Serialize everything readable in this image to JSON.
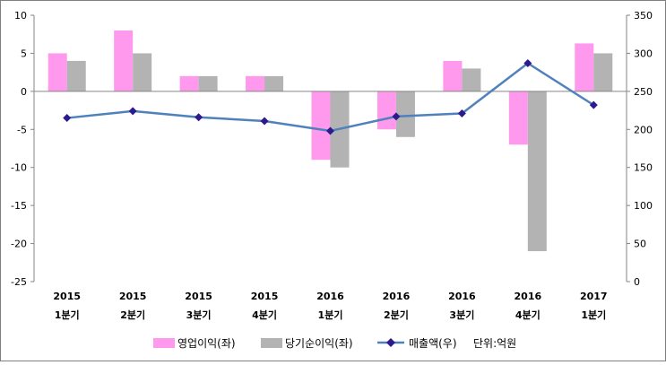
{
  "chart_data": {
    "type": "bar+line",
    "categories": [
      [
        "2015",
        "1분기"
      ],
      [
        "2015",
        "2분기"
      ],
      [
        "2015",
        "3분기"
      ],
      [
        "2015",
        "4분기"
      ],
      [
        "2016",
        "1분기"
      ],
      [
        "2016",
        "2분기"
      ],
      [
        "2016",
        "3분기"
      ],
      [
        "2016",
        "4분기"
      ],
      [
        "2017",
        "1분기"
      ]
    ],
    "left_axis": {
      "min": -25,
      "max": 10,
      "step": 5,
      "ticks": [
        "10",
        "5",
        "0",
        "-5",
        "-10",
        "-15",
        "-20",
        "-25"
      ]
    },
    "right_axis": {
      "min": 0,
      "max": 350,
      "step": 50,
      "ticks": [
        "350",
        "300",
        "250",
        "200",
        "150",
        "100",
        "50",
        "0"
      ]
    },
    "series": [
      {
        "name": "영업이익(좌)",
        "kind": "bar",
        "axis": "left",
        "color": "#ff99ee",
        "values": [
          5,
          8,
          2,
          2,
          -9,
          -5,
          4,
          -7,
          6.3
        ]
      },
      {
        "name": "당기순이익(좌)",
        "kind": "bar",
        "axis": "left",
        "color": "#b3b3b3",
        "values": [
          4,
          5,
          2,
          2,
          -10,
          -6,
          3,
          -21,
          5
        ]
      },
      {
        "name": "매출액(우)",
        "kind": "line",
        "axis": "right",
        "color": "#4f81bd",
        "marker_color": "#2e1a8f",
        "values": [
          215,
          224,
          216,
          211,
          198,
          217,
          221,
          287,
          232
        ]
      }
    ],
    "unit_note": "단위:억원"
  }
}
